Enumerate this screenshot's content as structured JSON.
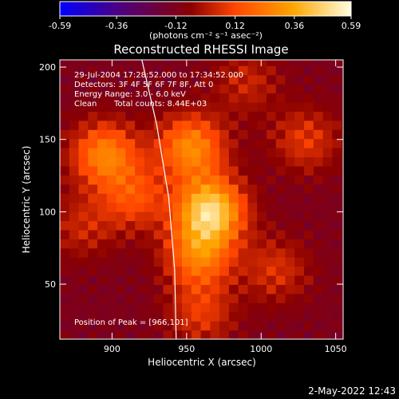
{
  "chart_data": {
    "type": "heatmap",
    "title": "Reconstructed RHESSI Image",
    "xlabel": "Heliocentric X (arcsec)",
    "ylabel": "Heliocentric Y (arcsec)",
    "xlim": [
      865,
      1055
    ],
    "ylim": [
      12,
      205
    ],
    "x_ticks": [
      900,
      950,
      1000,
      1050
    ],
    "y_ticks": [
      50,
      100,
      150,
      200
    ],
    "colorbar": {
      "range": [
        -0.59,
        0.59
      ],
      "ticks": [
        "-0.59",
        "-0.36",
        "-0.12",
        "0.12",
        "0.36",
        "0.59"
      ],
      "unit_label": "(photons cm⁻² s⁻¹ asec⁻²)",
      "colors": [
        "#0000ff",
        "#4b0082",
        "#8b0000",
        "#ff4500",
        "#ffa500",
        "#ffffe0"
      ]
    },
    "annotations": {
      "time_range": "29-Jul-2004 17:28:52.000 to 17:34:52.000",
      "detectors": "Detectors: 3F 4F 5F 6F 7F 8F, Att 0",
      "energy_range": "Energy Range: 3.0 - 6.0 keV",
      "method": "Clean",
      "total_counts": "Total counts: 8.44E+03",
      "peak": "Position of Peak = [966,101]"
    },
    "peak_position": [
      966,
      101
    ],
    "limb_curve": [
      [
        920,
        205
      ],
      [
        930,
        160
      ],
      [
        938,
        110
      ],
      [
        942,
        60
      ],
      [
        943,
        12
      ]
    ],
    "sources": [
      {
        "x": 966,
        "y": 101,
        "intensity": 0.59
      },
      {
        "x": 953,
        "y": 145,
        "intensity": 0.4
      },
      {
        "x": 958,
        "y": 70,
        "intensity": 0.35
      },
      {
        "x": 895,
        "y": 140,
        "intensity": 0.38
      },
      {
        "x": 915,
        "y": 110,
        "intensity": 0.24
      },
      {
        "x": 1010,
        "y": 60,
        "intensity": 0.18
      },
      {
        "x": 1030,
        "y": 150,
        "intensity": 0.2
      },
      {
        "x": 990,
        "y": 190,
        "intensity": 0.15
      },
      {
        "x": 960,
        "y": 30,
        "intensity": 0.2
      },
      {
        "x": 880,
        "y": 90,
        "intensity": 0.15
      }
    ],
    "grid": false
  },
  "footer": {
    "timestamp": "2-May-2022 12:43"
  }
}
